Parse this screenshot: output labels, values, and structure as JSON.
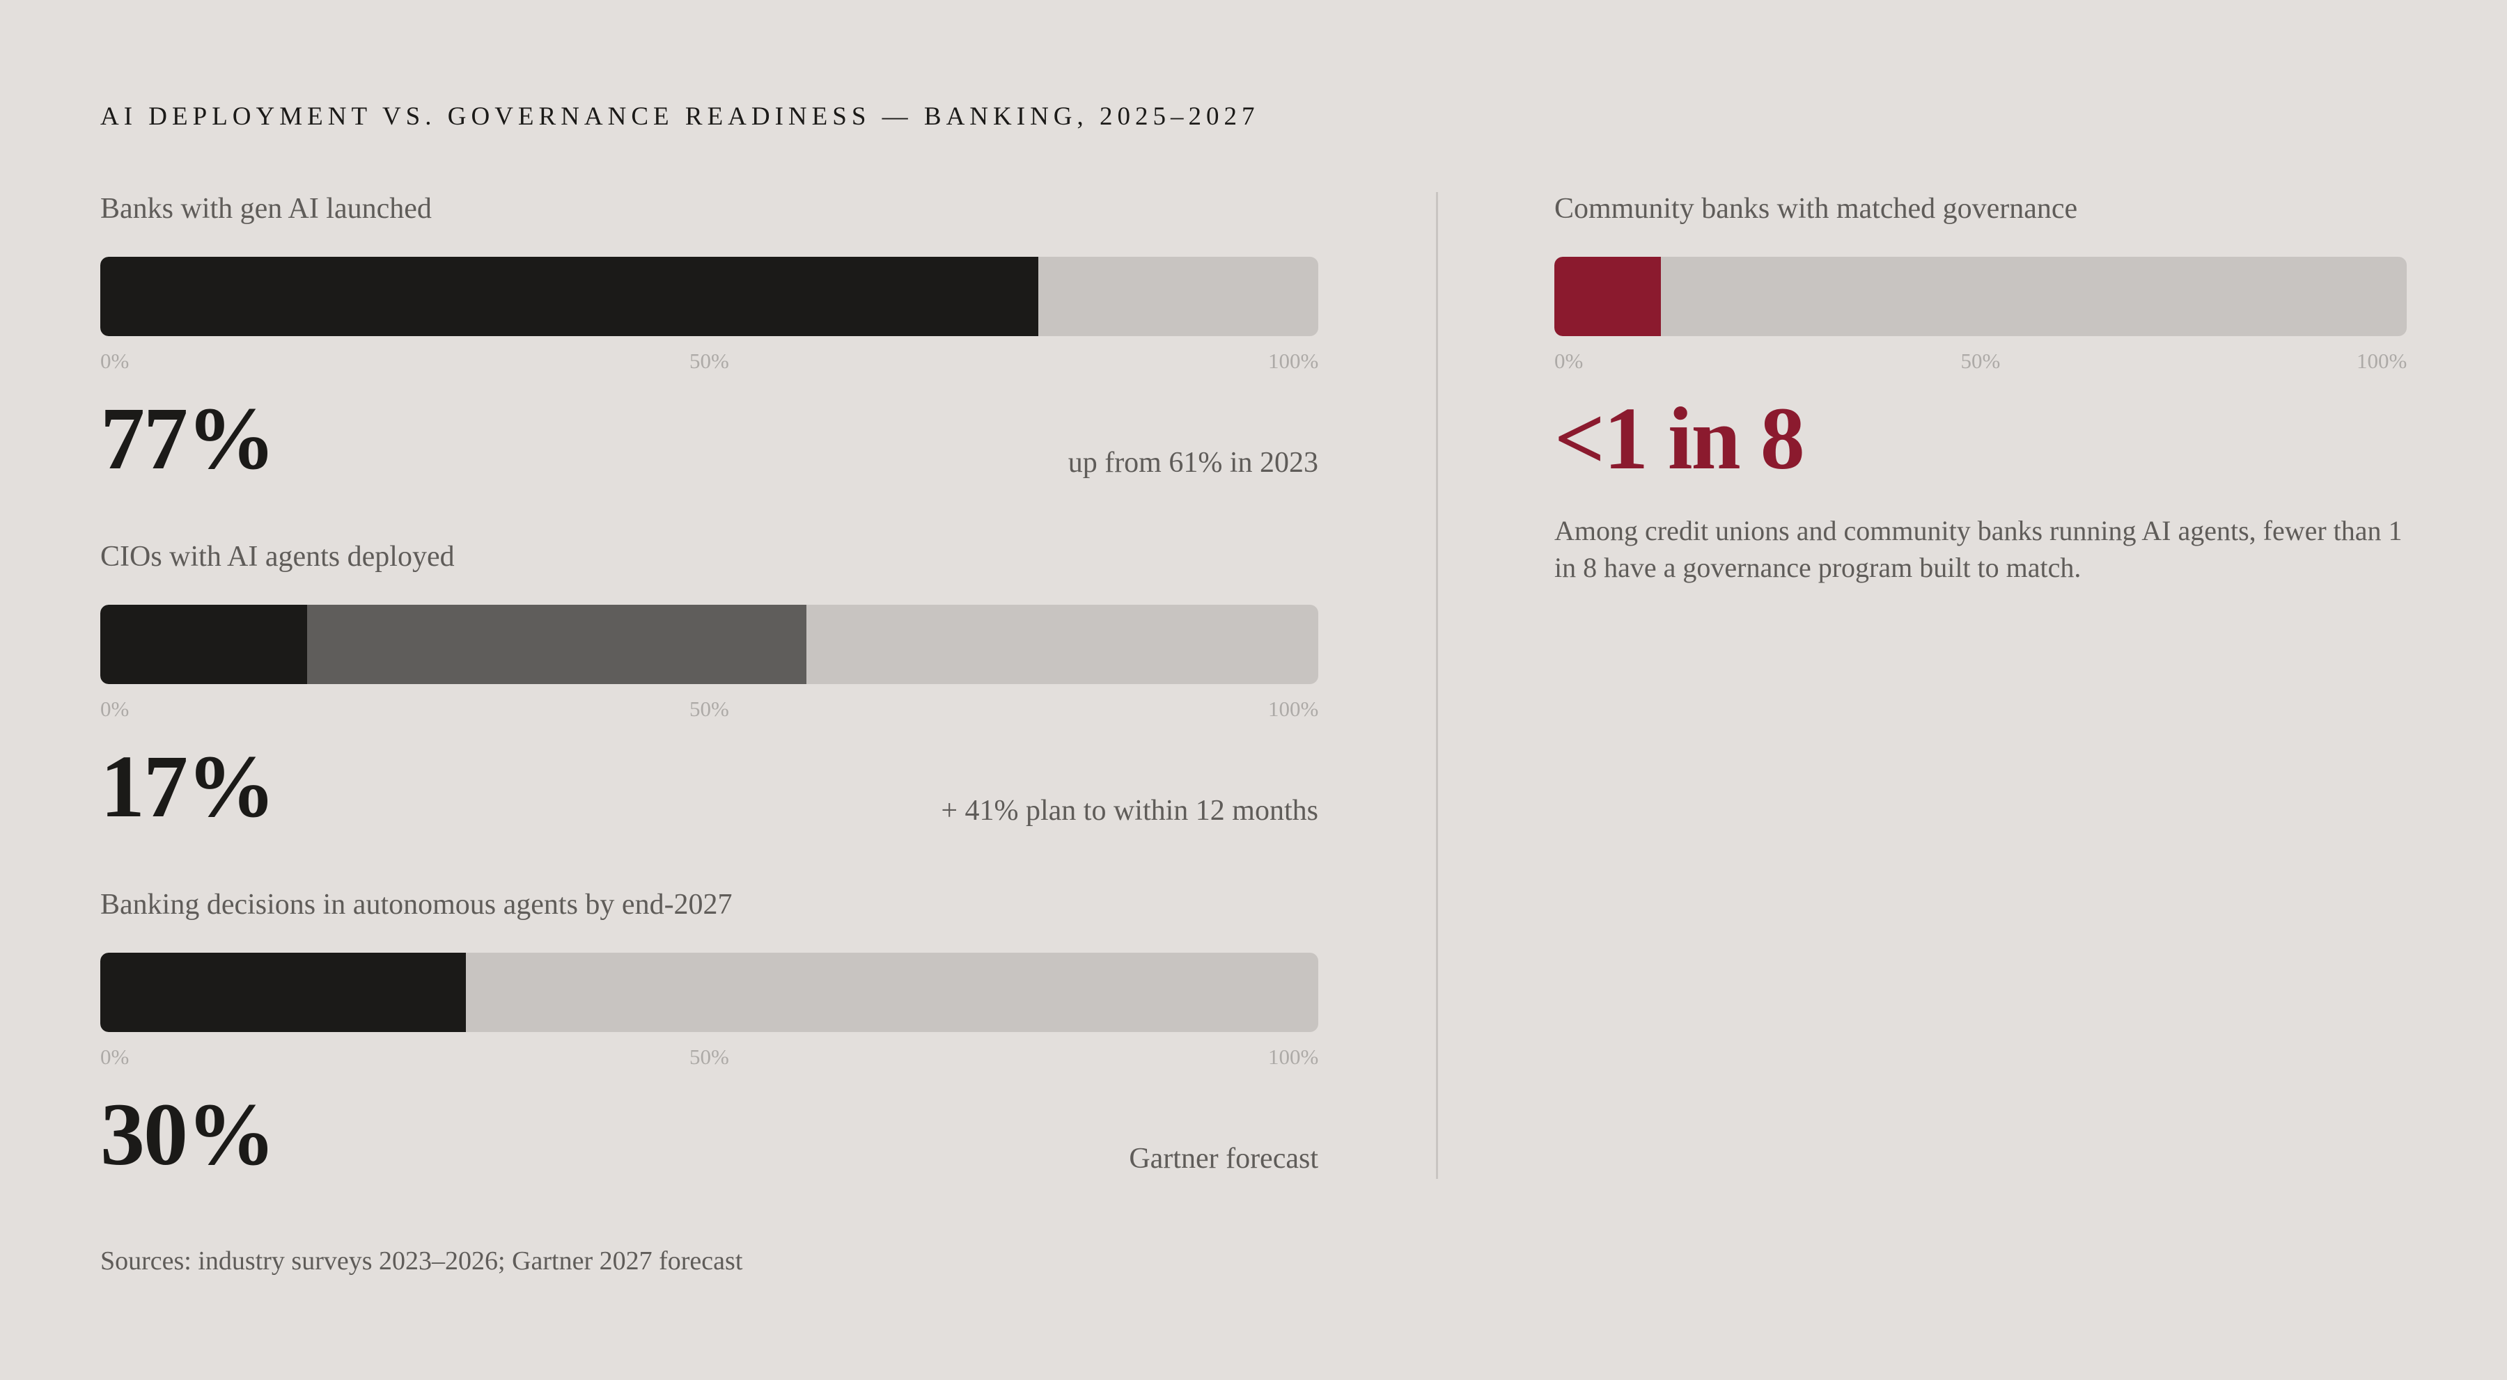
{
  "title": "AI DEPLOYMENT VS. GOVERNANCE READINESS — BANKING, 2025–2027",
  "sources": "Sources: industry surveys 2023–2026; Gartner 2027 forecast",
  "colors": {
    "background": "#e3dfdc",
    "track": "#c8c4c1",
    "primary": "#1b1a18",
    "secondary": "#5f5c59",
    "accent": "#8b1a2e",
    "tick": "#adaaa7"
  },
  "chart_data": [
    {
      "type": "bar",
      "label": "Banks with gen AI launched",
      "value_text": "77%",
      "note": "up from 61% in 2023",
      "scale": [
        0,
        100
      ],
      "tick_labels": [
        "0%",
        "50%",
        "100%"
      ],
      "tick_values": [
        0,
        50,
        100
      ],
      "segments": [
        {
          "value": 77,
          "color": "#1b1a18"
        }
      ]
    },
    {
      "type": "bar",
      "label": "CIOs with AI agents deployed",
      "value_text": "17%",
      "note": "+ 41% plan to within 12 months",
      "scale": [
        0,
        100
      ],
      "tick_labels": [
        "0%",
        "50%",
        "100%"
      ],
      "tick_values": [
        0,
        50,
        100
      ],
      "segments": [
        {
          "value": 17,
          "color": "#1b1a18"
        },
        {
          "value": 41,
          "color": "#5f5d5b"
        }
      ]
    },
    {
      "type": "bar",
      "label": "Banking decisions in autonomous agents by end-2027",
      "value_text": "30%",
      "note": "Gartner forecast",
      "scale": [
        0,
        100
      ],
      "tick_labels": [
        "0%",
        "50%",
        "100%"
      ],
      "tick_values": [
        0,
        50,
        100
      ],
      "segments": [
        {
          "value": 30,
          "color": "#1b1a18"
        }
      ]
    },
    {
      "type": "bar",
      "label": "Community banks with matched governance",
      "value_text": "<1 in 8",
      "description": "Among credit unions and community banks running AI agents, fewer than 1 in 8 have a governance program built to match.",
      "scale": [
        0,
        100
      ],
      "tick_labels": [
        "0%",
        "50%",
        "100%"
      ],
      "tick_values": [
        0,
        50,
        100
      ],
      "value_color": "#8b1a2e",
      "segments": [
        {
          "value": 12.5,
          "color": "#8b1a2e"
        }
      ]
    }
  ]
}
